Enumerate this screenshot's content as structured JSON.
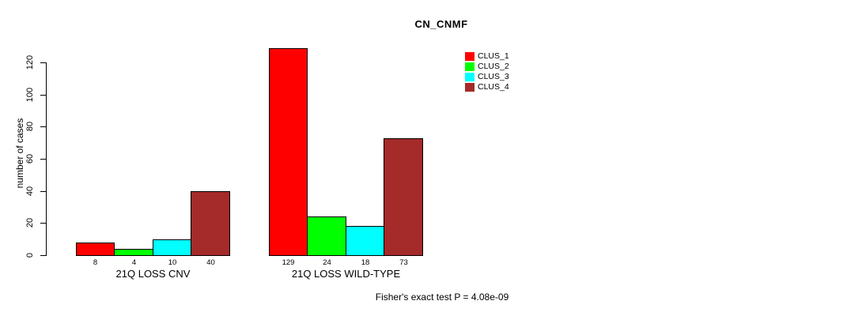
{
  "chart_data": {
    "type": "bar",
    "title": "CN_CNMF",
    "ylabel": "number of cases",
    "xlabel": "",
    "categories": [
      "21Q LOSS CNV",
      "21Q LOSS WILD-TYPE"
    ],
    "series": [
      {
        "name": "CLUS_1",
        "color": "#FF0000",
        "values": [
          8,
          129
        ]
      },
      {
        "name": "CLUS_2",
        "color": "#00FF00",
        "values": [
          4,
          24
        ]
      },
      {
        "name": "CLUS_3",
        "color": "#00FFFF",
        "values": [
          10,
          18
        ]
      },
      {
        "name": "CLUS_4",
        "color": "#A52A2A",
        "values": [
          40,
          73
        ]
      }
    ],
    "yticks": [
      0,
      20,
      40,
      60,
      80,
      100,
      120
    ],
    "ylim": [
      0,
      130
    ],
    "grid": false,
    "legend_position": "top-right",
    "bar_value_labels_visible": true,
    "annotation": "Fisher's exact test P = 4.08e-09"
  },
  "colors": {
    "axis": "#000000",
    "text": "#000000",
    "background": "#FFFFFF"
  }
}
